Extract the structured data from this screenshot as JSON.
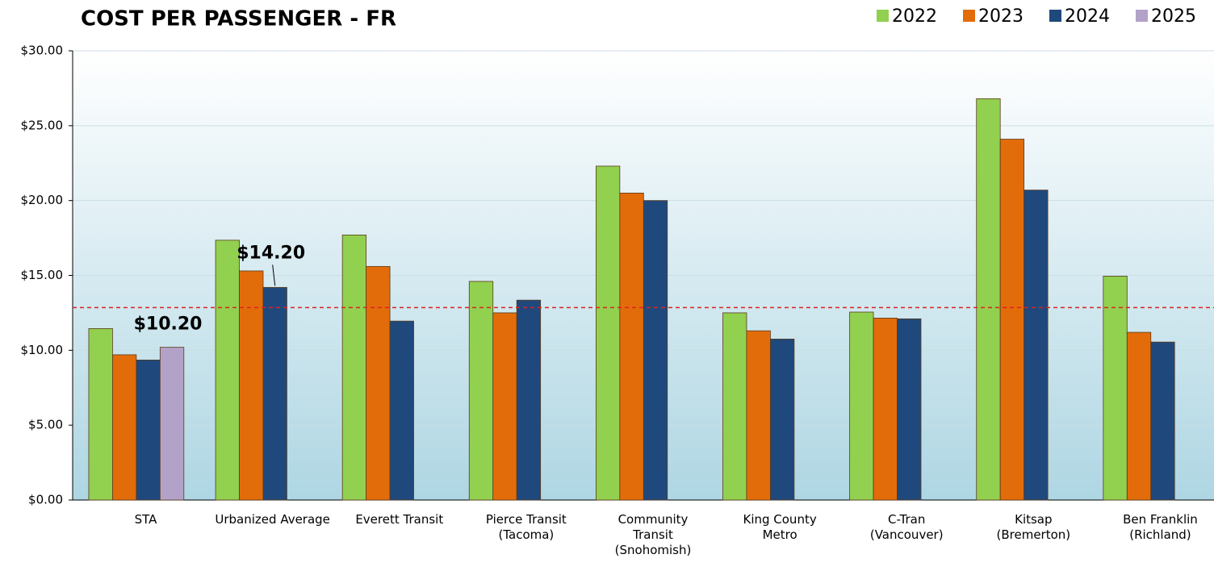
{
  "chart_data": {
    "type": "bar",
    "title": "COST PER PASSENGER - FR",
    "categories": [
      "STA",
      "Urbanized Average",
      "Everett Transit",
      "Pierce Transit\n(Tacoma)",
      "Community\nTransit\n(Snohomish)",
      "King County\nMetro",
      "C-Tran\n(Vancouver)",
      "Kitsap\n(Bremerton)",
      "Ben Franklin\n(Richland)"
    ],
    "series": [
      {
        "name": "2022",
        "color": "#92d050",
        "values": [
          11.45,
          17.35,
          17.7,
          14.6,
          22.3,
          12.5,
          12.55,
          26.8,
          14.95
        ]
      },
      {
        "name": "2023",
        "color": "#e36c0a",
        "values": [
          9.7,
          15.3,
          15.6,
          12.5,
          20.5,
          11.3,
          12.15,
          24.1,
          11.2
        ]
      },
      {
        "name": "2024",
        "color": "#1f497d",
        "values": [
          9.35,
          14.2,
          11.95,
          13.35,
          20.0,
          10.75,
          12.1,
          20.7,
          10.55
        ],
        "value_labels": [
          null,
          "$14.20",
          null,
          null,
          null,
          null,
          null,
          null,
          null
        ]
      },
      {
        "name": "2025",
        "color": "#b3a2c7",
        "values": [
          10.2,
          null,
          null,
          null,
          null,
          null,
          null,
          null,
          null
        ],
        "value_labels": [
          "$10.20",
          null,
          null,
          null,
          null,
          null,
          null,
          null,
          null
        ]
      }
    ],
    "reference_line": {
      "value": 12.85,
      "color": "#e02020"
    },
    "ylim": [
      0,
      30
    ],
    "yticks": [
      {
        "value": 0,
        "label": "$0.00"
      },
      {
        "value": 5,
        "label": "$5.00"
      },
      {
        "value": 10,
        "label": "$10.00"
      },
      {
        "value": 15,
        "label": "$15.00"
      },
      {
        "value": 20,
        "label": "$20.00"
      },
      {
        "value": 25,
        "label": "$25.00"
      },
      {
        "value": 30,
        "label": "$30.00"
      }
    ],
    "grid": true,
    "legend": "top-right"
  }
}
